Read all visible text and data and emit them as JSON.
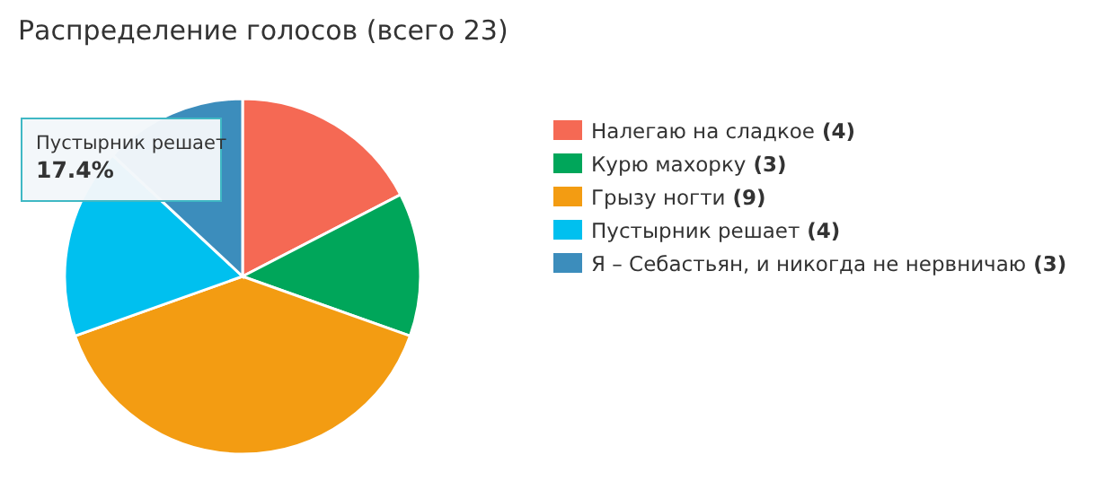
{
  "chart_data": {
    "type": "pie",
    "title": "Распределение голосов (всего 23)",
    "categories": [
      "Налегаю на сладкое",
      "Курю махорку",
      "Грызу ногти",
      "Пустырник решает",
      "Я – Себастьян, и никогда не нервничаю"
    ],
    "values": [
      4,
      3,
      9,
      4,
      3
    ],
    "colors": [
      "#f56954",
      "#00a65a",
      "#f39c12",
      "#00c0ef",
      "#3c8dbc"
    ],
    "value_labels": [
      "(4)",
      "(3)",
      "(9)",
      "(4)",
      "(3)"
    ],
    "legend": "right",
    "annotations": [
      "Пустырник решает",
      "17.4%"
    ]
  }
}
